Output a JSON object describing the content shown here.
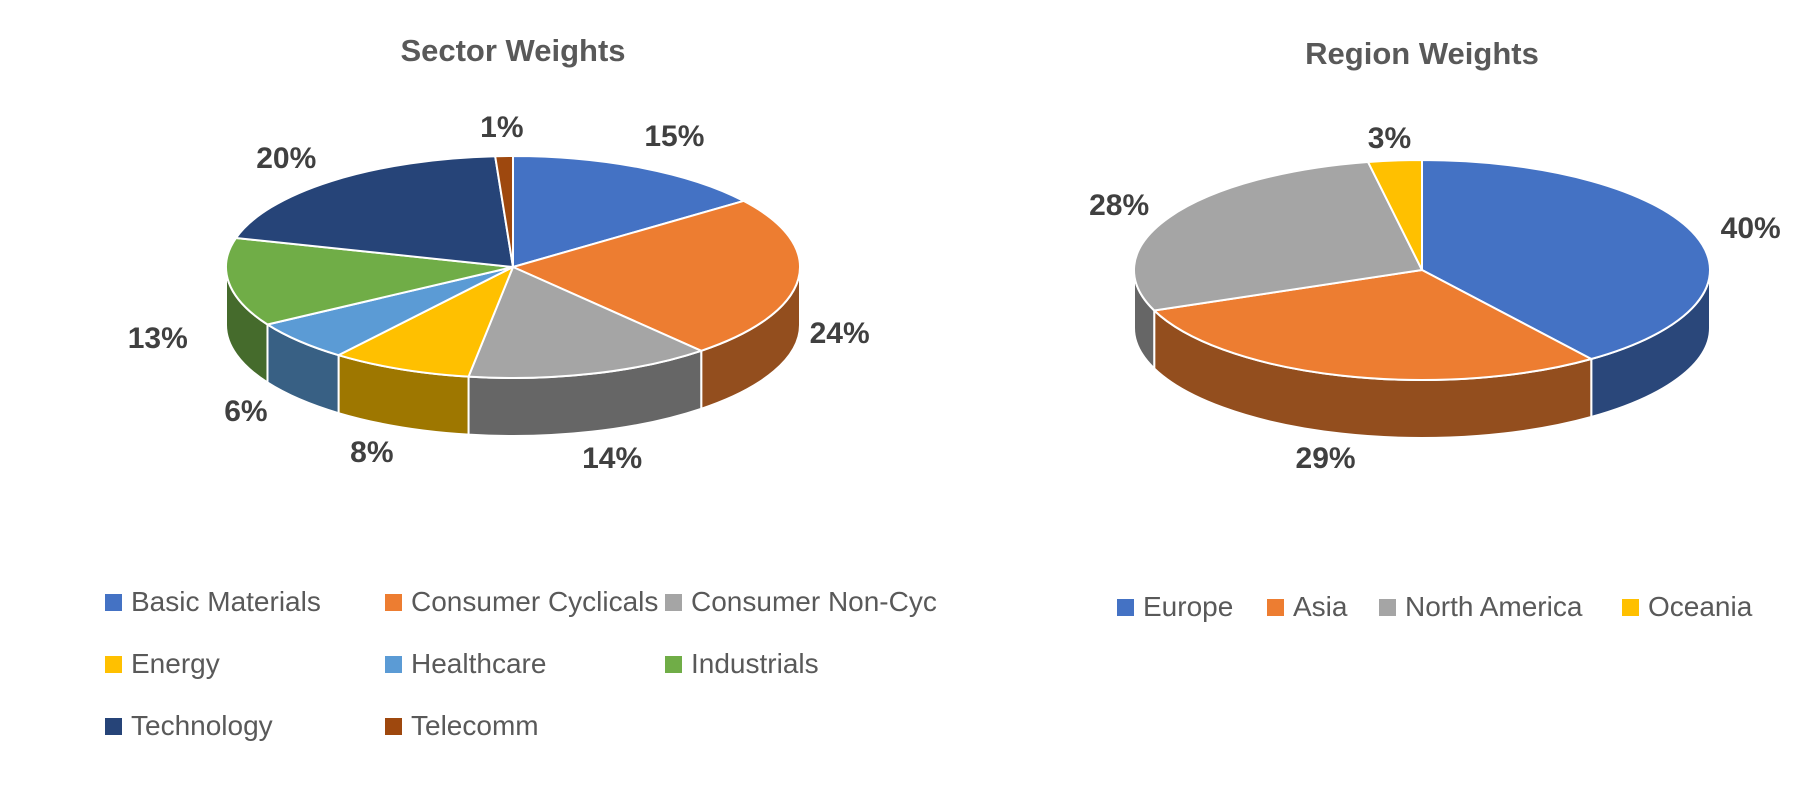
{
  "chart_data": [
    {
      "type": "pie",
      "title": "Sector Weights",
      "legend_position": "bottom",
      "slices": [
        {
          "label": "Basic Materials",
          "value": 15,
          "display": "15%",
          "color": "#4472C4"
        },
        {
          "label": "Consumer Cyclicals",
          "value": 24,
          "display": "24%",
          "color": "#ED7D31"
        },
        {
          "label": "Consumer Non-Cyc",
          "value": 14,
          "display": "14%",
          "color": "#A5A5A5"
        },
        {
          "label": "Energy",
          "value": 8,
          "display": "8%",
          "color": "#FFC000"
        },
        {
          "label": "Healthcare",
          "value": 6,
          "display": "6%",
          "color": "#5B9BD5"
        },
        {
          "label": "Industrials",
          "value": 13,
          "display": "13%",
          "color": "#70AD47"
        },
        {
          "label": "Technology",
          "value": 20,
          "display": "20%",
          "color": "#264478"
        },
        {
          "label": "Telecomm",
          "value": 1,
          "display": "1%",
          "color": "#9E480E"
        }
      ]
    },
    {
      "type": "pie",
      "title": "Region Weights",
      "legend_position": "bottom",
      "slices": [
        {
          "label": "Europe",
          "value": 40,
          "display": "40%",
          "color": "#4472C4"
        },
        {
          "label": "Asia",
          "value": 29,
          "display": "29%",
          "color": "#ED7D31"
        },
        {
          "label": "North America",
          "value": 28,
          "display": "28%",
          "color": "#A5A5A5"
        },
        {
          "label": "Oceania",
          "value": 3,
          "display": "3%",
          "color": "#FFC000"
        }
      ]
    }
  ]
}
